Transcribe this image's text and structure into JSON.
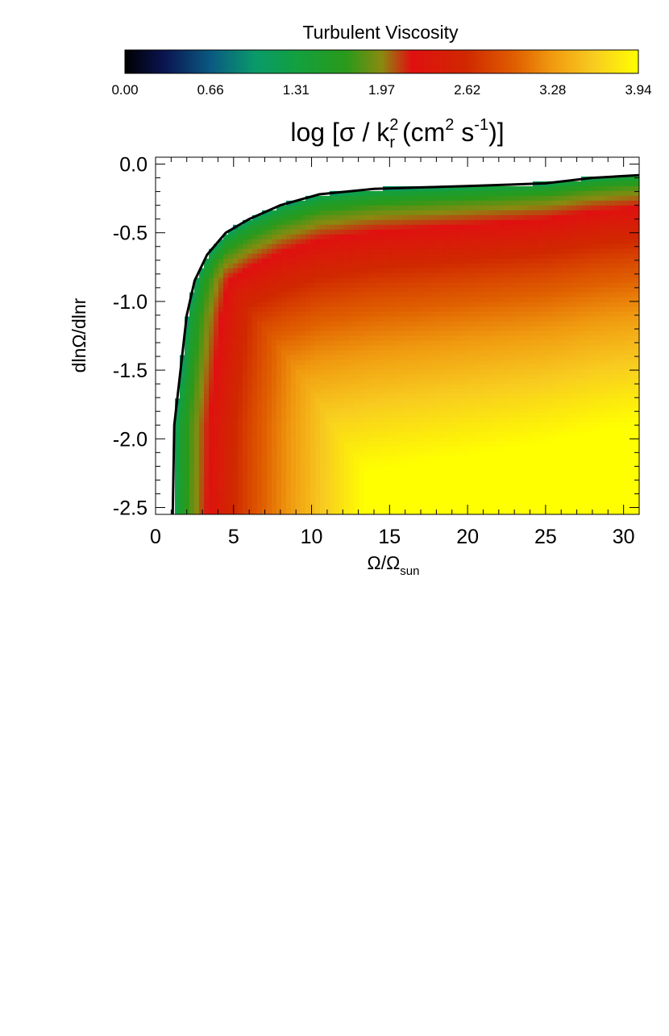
{
  "chart_data": {
    "type": "heatmap",
    "colorbar": {
      "title": "Turbulent Viscosity",
      "ticks": [
        "0.00",
        "0.66",
        "1.31",
        "1.97",
        "2.62",
        "3.28",
        "3.94"
      ],
      "range": [
        0.0,
        3.94
      ],
      "colormap": [
        {
          "v": 0.0,
          "color": "#000000"
        },
        {
          "v": 0.3,
          "color": "#0a1450"
        },
        {
          "v": 0.66,
          "color": "#0a5a82"
        },
        {
          "v": 1.0,
          "color": "#0a9a6a"
        },
        {
          "v": 1.31,
          "color": "#12a040"
        },
        {
          "v": 1.7,
          "color": "#2a9a1a"
        },
        {
          "v": 1.97,
          "color": "#8a8a10"
        },
        {
          "v": 2.2,
          "color": "#e01010"
        },
        {
          "v": 2.62,
          "color": "#d02800"
        },
        {
          "v": 3.0,
          "color": "#e06000"
        },
        {
          "v": 3.28,
          "color": "#f09a10"
        },
        {
          "v": 3.6,
          "color": "#f8cc20"
        },
        {
          "v": 3.94,
          "color": "#ffff00"
        }
      ]
    },
    "title": {
      "prefix": "log [",
      "sigma": "σ",
      "slash": " / k",
      "k_sub": "r",
      "k_sup": "2",
      "open": "  (cm",
      "cm_sup": "2",
      "s": " s",
      "s_sup": "-1",
      "close": ")]"
    },
    "xlabel": {
      "main": "Ω/Ω",
      "sub": "sun"
    },
    "ylabel": "dlnΩ/dlnr",
    "xlim": [
      0,
      31
    ],
    "ylim": [
      -2.55,
      0.05
    ],
    "xticks": [
      {
        "v": 0,
        "label": "0"
      },
      {
        "v": 5,
        "label": "5"
      },
      {
        "v": 10,
        "label": "10"
      },
      {
        "v": 15,
        "label": "15"
      },
      {
        "v": 20,
        "label": "20"
      },
      {
        "v": 25,
        "label": "25"
      },
      {
        "v": 30,
        "label": "30"
      }
    ],
    "yticks": [
      {
        "v": 0.0,
        "label": "0.0"
      },
      {
        "v": -0.5,
        "label": "-0.5"
      },
      {
        "v": -1.0,
        "label": "-1.0"
      },
      {
        "v": -1.5,
        "label": "-1.5"
      },
      {
        "v": -2.0,
        "label": "-2.0"
      },
      {
        "v": -2.5,
        "label": "-2.5"
      }
    ],
    "boundary": [
      {
        "x": 1.1,
        "y": -2.55
      },
      {
        "x": 1.2,
        "y": -1.9
      },
      {
        "x": 1.6,
        "y": -1.5
      },
      {
        "x": 2.0,
        "y": -1.1
      },
      {
        "x": 2.5,
        "y": -0.85
      },
      {
        "x": 3.3,
        "y": -0.66
      },
      {
        "x": 4.5,
        "y": -0.5
      },
      {
        "x": 6.0,
        "y": -0.4
      },
      {
        "x": 8.0,
        "y": -0.3
      },
      {
        "x": 10.5,
        "y": -0.22
      },
      {
        "x": 14.0,
        "y": -0.18
      },
      {
        "x": 20.0,
        "y": -0.16
      },
      {
        "x": 25.0,
        "y": -0.14
      },
      {
        "x": 28.0,
        "y": -0.1
      },
      {
        "x": 31.0,
        "y": -0.08
      }
    ]
  }
}
